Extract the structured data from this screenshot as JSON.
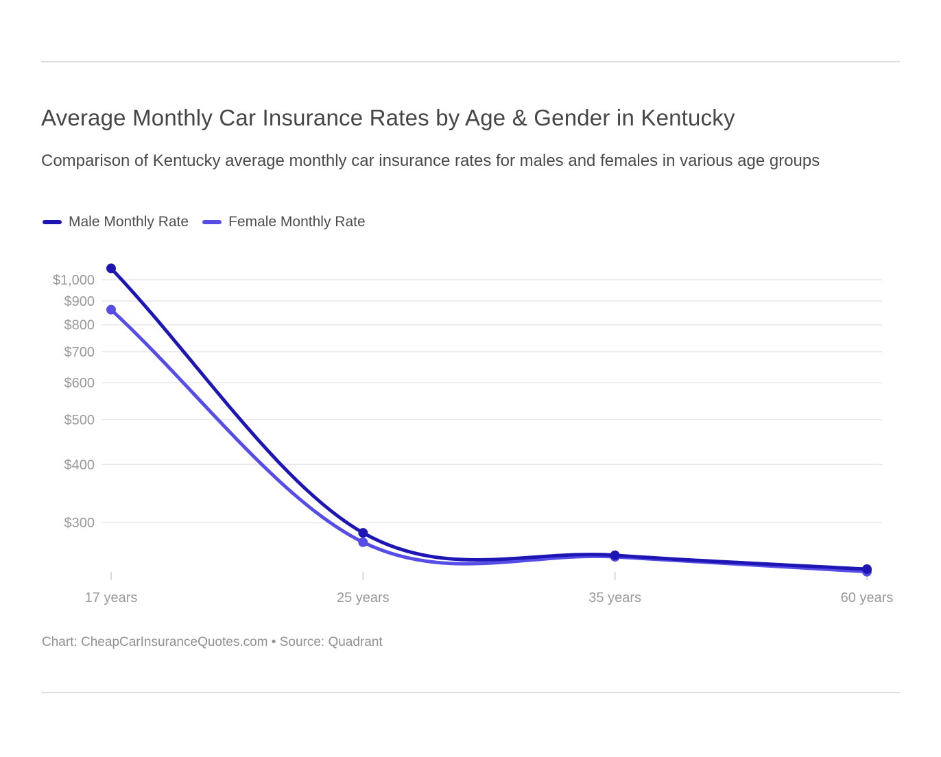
{
  "footer": {
    "attribution": "Chart: CheapCarInsuranceQuotes.com • Source: Quadrant"
  },
  "chart_data": {
    "type": "line",
    "title": "Average Monthly Car Insurance Rates by Age & Gender in Kentucky",
    "subtitle": "Comparison of Kentucky average monthly car insurance rates for males and females in various age groups",
    "categories": [
      "17 years",
      "25 years",
      "35 years",
      "60 years"
    ],
    "series": [
      {
        "name": "Male Monthly Rate",
        "color": "#1d15b4",
        "values": [
          1058,
          285,
          255,
          238
        ]
      },
      {
        "name": "Female Monthly Rate",
        "color": "#564ce6",
        "values": [
          862,
          272,
          253,
          235
        ]
      }
    ],
    "y_axis": {
      "scale": "log",
      "ticks": [
        300,
        400,
        500,
        600,
        700,
        800,
        900,
        1000
      ],
      "tick_prefix": "$",
      "labeled_range": [
        300,
        1000
      ]
    },
    "legend_position": "top-left",
    "grid": "horizontal",
    "colors": {
      "grid_line": "#e8e8e8",
      "axis_tick_mark": "#cccccc",
      "axis_label": "#999999"
    },
    "marker": "filled-circle",
    "curve": "smooth"
  }
}
